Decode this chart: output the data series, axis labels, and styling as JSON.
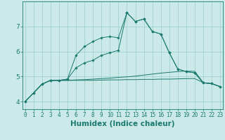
{
  "xlabel": "Humidex (Indice chaleur)",
  "background_color": "#cce9e9",
  "grid_color": "#99cccc",
  "line_color": "#1a7a6e",
  "x_values": [
    0,
    1,
    2,
    3,
    4,
    5,
    6,
    7,
    8,
    9,
    10,
    11,
    12,
    13,
    14,
    15,
    16,
    17,
    18,
    19,
    20,
    21,
    22,
    23
  ],
  "line1_marked": [
    4.0,
    4.35,
    4.7,
    4.85,
    4.85,
    4.9,
    5.85,
    6.2,
    6.4,
    6.55,
    6.6,
    6.55,
    7.55,
    7.2,
    7.3,
    6.8,
    6.7,
    5.95,
    5.3,
    5.2,
    5.15,
    4.75,
    4.72,
    4.6
  ],
  "line2_marked": [
    4.0,
    4.35,
    4.7,
    4.85,
    4.85,
    4.9,
    5.35,
    5.55,
    5.65,
    5.85,
    5.95,
    6.05,
    7.55,
    7.2,
    7.3,
    6.8,
    6.7,
    5.95,
    5.3,
    5.2,
    5.15,
    4.75,
    4.72,
    4.6
  ],
  "line3_flat": [
    4.0,
    4.35,
    4.7,
    4.85,
    4.85,
    4.85,
    4.87,
    4.88,
    4.9,
    4.92,
    4.94,
    4.97,
    4.99,
    5.02,
    5.06,
    5.1,
    5.14,
    5.17,
    5.2,
    5.22,
    5.21,
    4.76,
    4.72,
    4.6
  ],
  "line4_flat": [
    4.0,
    4.35,
    4.7,
    4.85,
    4.85,
    4.85,
    4.85,
    4.85,
    4.85,
    4.86,
    4.87,
    4.87,
    4.88,
    4.88,
    4.89,
    4.89,
    4.9,
    4.9,
    4.91,
    4.92,
    4.92,
    4.76,
    4.72,
    4.6
  ],
  "ylim": [
    3.7,
    8.0
  ],
  "yticks": [
    4,
    5,
    6,
    7
  ],
  "xlim": [
    -0.3,
    23.3
  ],
  "tick_fontsize": 5.5,
  "label_fontsize": 7.5
}
